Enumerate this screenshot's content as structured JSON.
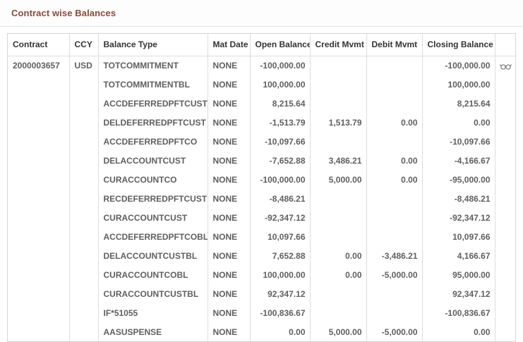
{
  "page": {
    "title": "Contract wise Balances"
  },
  "colors": {
    "title": "#8a4a38",
    "header_text": "#333333",
    "body_text": "#5f5f5f",
    "cell_border": "#dddddd",
    "table_border": "#d6d6d6",
    "divider": "#e3e3e3",
    "icon": "#777777"
  },
  "icons": {
    "row_action": "glasses-view-icon"
  },
  "table": {
    "columns": [
      "Contract",
      "CCY",
      "Balance Type",
      "Mat Date",
      "Open Balance",
      "Credit Mvmt",
      "Debit Mvmt",
      "Closing Balance"
    ],
    "rows": [
      {
        "contract": "2000003657",
        "ccy": "USD",
        "balance_type": "TOTCOMMITMENT",
        "mat_date": "NONE",
        "open_balance": "-100,000.00",
        "credit_mvmt": "",
        "debit_mvmt": "",
        "closing_balance": "-100,000.00",
        "has_view_icon": true
      },
      {
        "contract": "",
        "ccy": "",
        "balance_type": "TOTCOMMITMENTBL",
        "mat_date": "NONE",
        "open_balance": "100,000.00",
        "credit_mvmt": "",
        "debit_mvmt": "",
        "closing_balance": "100,000.00",
        "has_view_icon": false
      },
      {
        "contract": "",
        "ccy": "",
        "balance_type": "ACCDEFERREDPFTCUST",
        "mat_date": "NONE",
        "open_balance": "8,215.64",
        "credit_mvmt": "",
        "debit_mvmt": "",
        "closing_balance": "8,215.64",
        "has_view_icon": false
      },
      {
        "contract": "",
        "ccy": "",
        "balance_type": "DELDEFERREDPFTCUST",
        "mat_date": "NONE",
        "open_balance": "-1,513.79",
        "credit_mvmt": "1,513.79",
        "debit_mvmt": "0.00",
        "closing_balance": "0.00",
        "has_view_icon": false
      },
      {
        "contract": "",
        "ccy": "",
        "balance_type": "ACCDEFERREDPFTCO",
        "mat_date": "NONE",
        "open_balance": "-10,097.66",
        "credit_mvmt": "",
        "debit_mvmt": "",
        "closing_balance": "-10,097.66",
        "has_view_icon": false
      },
      {
        "contract": "",
        "ccy": "",
        "balance_type": "DELACCOUNTCUST",
        "mat_date": "NONE",
        "open_balance": "-7,652.88",
        "credit_mvmt": "3,486.21",
        "debit_mvmt": "0.00",
        "closing_balance": "-4,166.67",
        "has_view_icon": false
      },
      {
        "contract": "",
        "ccy": "",
        "balance_type": "CURACCOUNTCO",
        "mat_date": "NONE",
        "open_balance": "-100,000.00",
        "credit_mvmt": "5,000.00",
        "debit_mvmt": "0.00",
        "closing_balance": "-95,000.00",
        "has_view_icon": false
      },
      {
        "contract": "",
        "ccy": "",
        "balance_type": "RECDEFERREDPFTCUST",
        "mat_date": "NONE",
        "open_balance": "-8,486.21",
        "credit_mvmt": "",
        "debit_mvmt": "",
        "closing_balance": "-8,486.21",
        "has_view_icon": false
      },
      {
        "contract": "",
        "ccy": "",
        "balance_type": "CURACCOUNTCUST",
        "mat_date": "NONE",
        "open_balance": "-92,347.12",
        "credit_mvmt": "",
        "debit_mvmt": "",
        "closing_balance": "-92,347.12",
        "has_view_icon": false
      },
      {
        "contract": "",
        "ccy": "",
        "balance_type": "ACCDEFERREDPFTCOBL",
        "mat_date": "NONE",
        "open_balance": "10,097.66",
        "credit_mvmt": "",
        "debit_mvmt": "",
        "closing_balance": "10,097.66",
        "has_view_icon": false
      },
      {
        "contract": "",
        "ccy": "",
        "balance_type": "DELACCOUNTCUSTBL",
        "mat_date": "NONE",
        "open_balance": "7,652.88",
        "credit_mvmt": "0.00",
        "debit_mvmt": "-3,486.21",
        "closing_balance": "4,166.67",
        "has_view_icon": false
      },
      {
        "contract": "",
        "ccy": "",
        "balance_type": "CURACCOUNTCOBL",
        "mat_date": "NONE",
        "open_balance": "100,000.00",
        "credit_mvmt": "0.00",
        "debit_mvmt": "-5,000.00",
        "closing_balance": "95,000.00",
        "has_view_icon": false
      },
      {
        "contract": "",
        "ccy": "",
        "balance_type": "CURACCOUNTCUSTBL",
        "mat_date": "NONE",
        "open_balance": "92,347.12",
        "credit_mvmt": "",
        "debit_mvmt": "",
        "closing_balance": "92,347.12",
        "has_view_icon": false
      },
      {
        "contract": "",
        "ccy": "",
        "balance_type": "IF*51055",
        "mat_date": "NONE",
        "open_balance": "-100,836.67",
        "credit_mvmt": "",
        "debit_mvmt": "",
        "closing_balance": "-100,836.67",
        "has_view_icon": false
      },
      {
        "contract": "",
        "ccy": "",
        "balance_type": "AASUSPENSE",
        "mat_date": "NONE",
        "open_balance": "0.00",
        "credit_mvmt": "5,000.00",
        "debit_mvmt": "-5,000.00",
        "closing_balance": "0.00",
        "has_view_icon": false
      }
    ]
  }
}
